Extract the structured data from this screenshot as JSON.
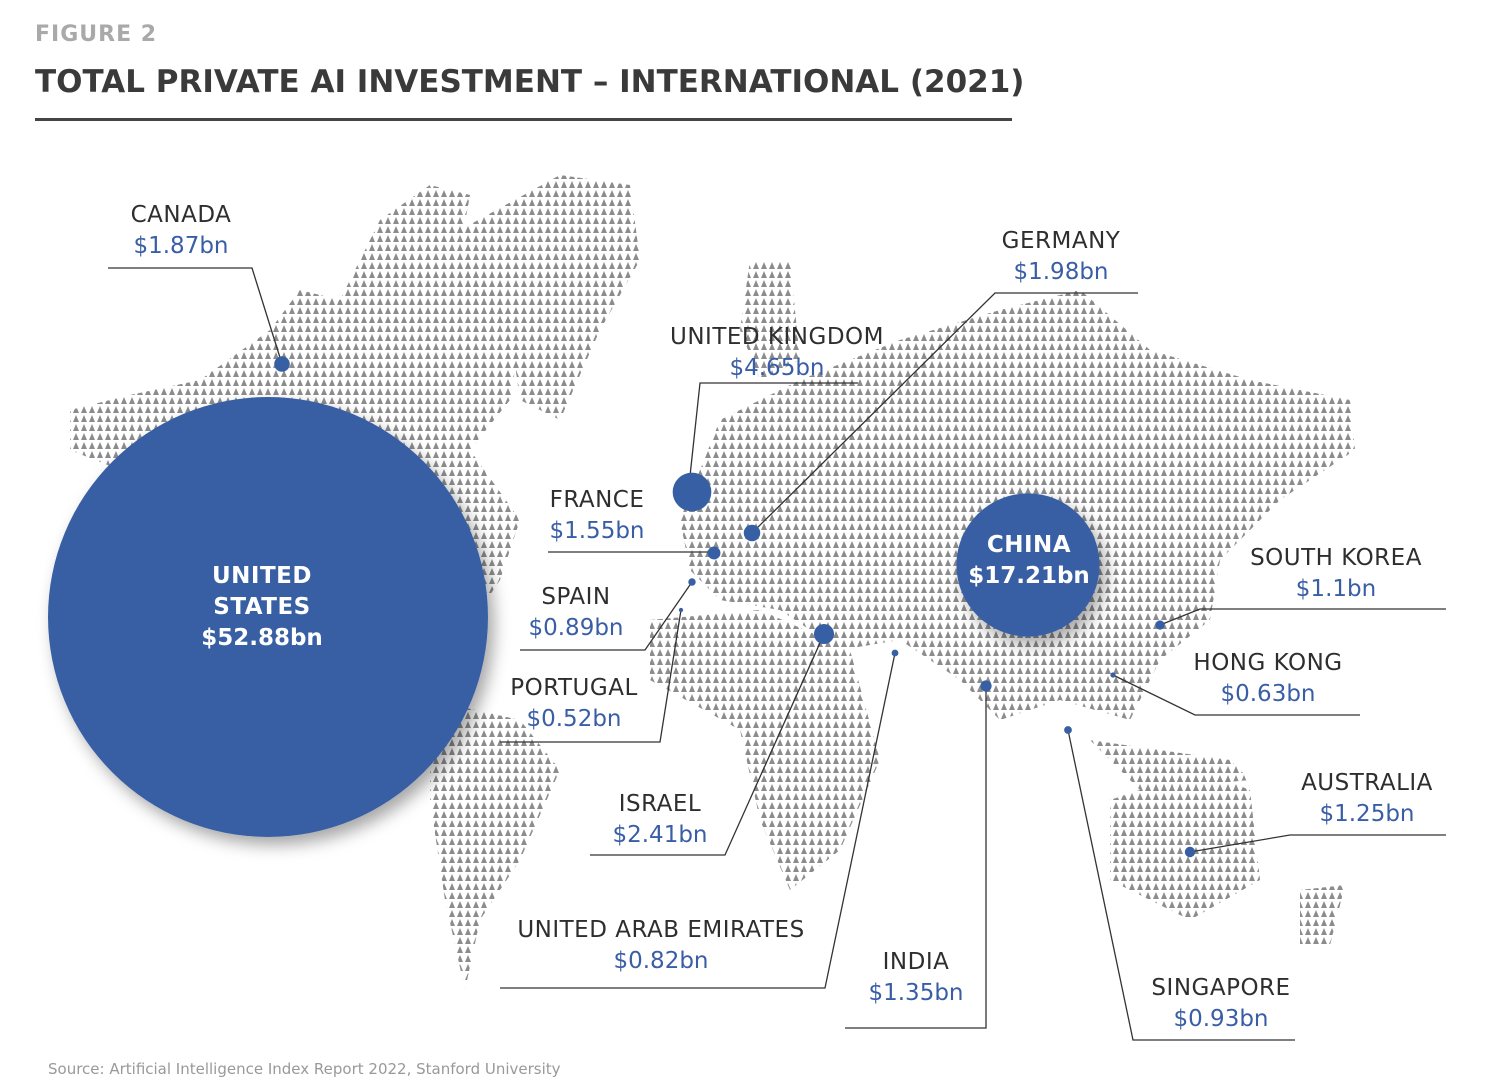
{
  "header": {
    "figure": "FIGURE 2",
    "title": "TOTAL PRIVATE AI INVESTMENT – INTERNATIONAL (2021)"
  },
  "countries": [
    {
      "name": "UNITED STATES",
      "value": 52.88,
      "value_label": "$52.88bn"
    },
    {
      "name": "CHINA",
      "value": 17.21,
      "value_label": "$17.21bn"
    },
    {
      "name": "UNITED KINGDOM",
      "value": 4.65,
      "value_label": "$4.65bn"
    },
    {
      "name": "GERMANY",
      "value": 1.98,
      "value_label": "$1.98bn"
    },
    {
      "name": "CANADA",
      "value": 1.87,
      "value_label": "$1.87bn"
    },
    {
      "name": "FRANCE",
      "value": 1.55,
      "value_label": "$1.55bn"
    },
    {
      "name": "SPAIN",
      "value": 0.89,
      "value_label": "$0.89bn"
    },
    {
      "name": "PORTUGAL",
      "value": 0.52,
      "value_label": "$0.52bn"
    },
    {
      "name": "ISRAEL",
      "value": 2.41,
      "value_label": "$2.41bn"
    },
    {
      "name": "UNITED ARAB EMIRATES",
      "value": 0.82,
      "value_label": "$0.82bn"
    },
    {
      "name": "INDIA",
      "value": 1.35,
      "value_label": "$1.35bn"
    },
    {
      "name": "SINGAPORE",
      "value": 0.93,
      "value_label": "$0.93bn"
    },
    {
      "name": "HONG KONG",
      "value": 0.63,
      "value_label": "$0.63bn"
    },
    {
      "name": "SOUTH KOREA",
      "value": 1.1,
      "value_label": "$1.1bn"
    },
    {
      "name": "AUSTRALIA",
      "value": 1.25,
      "value_label": "$1.25bn"
    }
  ],
  "source": "Source: Artificial Intelligence Index Report 2022, Stanford University"
}
